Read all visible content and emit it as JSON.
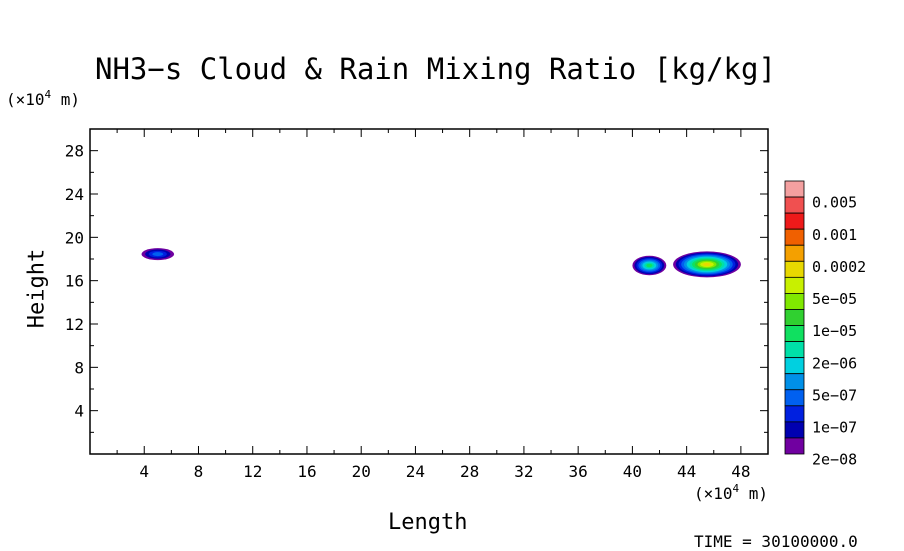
{
  "chart_data": {
    "type": "heatmap",
    "title": "NH3−s Cloud & Rain Mixing Ratio [kg/kg]",
    "xlabel": "Length",
    "ylabel": "Height",
    "x_unit": {
      "pre": "(×10",
      "exp": "4",
      "post": " m)"
    },
    "y_unit": {
      "pre": "(×10",
      "exp": "4",
      "post": " m)"
    },
    "xlim": [
      0,
      50
    ],
    "ylim": [
      0,
      30
    ],
    "x_ticks": [
      4,
      8,
      12,
      16,
      20,
      24,
      28,
      32,
      36,
      40,
      44,
      48
    ],
    "y_ticks": [
      4,
      8,
      12,
      16,
      20,
      24,
      28
    ],
    "colorbar": {
      "levels": [
        "0.005",
        "0.001",
        "0.0002",
        "5e−05",
        "1e−05",
        "2e−06",
        "5e−07",
        "1e−07",
        "2e−08"
      ],
      "colors": [
        "#f4a0a0",
        "#f05050",
        "#ee1a1a",
        "#f06000",
        "#f4a000",
        "#e8d800",
        "#c8f000",
        "#80e800",
        "#30d030",
        "#10e060",
        "#00e0a8",
        "#00d0e0",
        "#0090e8",
        "#0060f0",
        "#0020e0",
        "#0000b0",
        "#7000a0"
      ]
    },
    "regions": [
      {
        "name": "cloud-west",
        "x_range": [
          3.8,
          6.2
        ],
        "y_range": [
          17.9,
          19.0
        ],
        "peak": "1e−07"
      },
      {
        "name": "cloud-east-small",
        "x_range": [
          40.0,
          42.5
        ],
        "y_range": [
          16.5,
          18.3
        ],
        "peak": "2e−06"
      },
      {
        "name": "cloud-east-main",
        "x_range": [
          43.0,
          48.0
        ],
        "y_range": [
          16.3,
          18.7
        ],
        "peak": "5e−05"
      }
    ]
  },
  "footer": {
    "time_label": "TIME = 30100000.0"
  }
}
